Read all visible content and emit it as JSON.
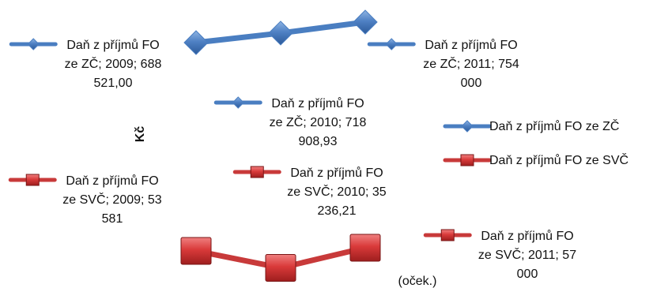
{
  "chart_data": {
    "type": "line",
    "title": "",
    "xlabel": "",
    "ylabel": "Kč",
    "x_annotation": "(oček.)",
    "categories": [
      "2009",
      "2010",
      "2011"
    ],
    "series": [
      {
        "name": "Daň z příjmů FO ze ZČ",
        "values": [
          688521.0,
          718908.93,
          754000
        ],
        "color": "#4a7ec1",
        "marker": "diamond",
        "data_labels": [
          [
            "Daň z příjmů FO",
            "ze ZČ; 2009; 688",
            "521,00"
          ],
          [
            "Daň z příjmů FO",
            "ze ZČ; 2010; 718",
            "908,93"
          ],
          [
            "Daň z příjmů FO",
            "ze ZČ; 2011; 754",
            "000"
          ]
        ]
      },
      {
        "name": "Daň z příjmů FO ze SVČ",
        "values": [
          53581,
          35236.21,
          57000
        ],
        "color": "#c83a3a",
        "marker": "square",
        "data_labels": [
          [
            "Daň z příjmů FO",
            "ze SVČ; 2009; 53",
            "581"
          ],
          [
            "Daň z příjmů FO",
            "ze SVČ; 2010; 35",
            "236,21"
          ],
          [
            "Daň z příjmů FO",
            "ze SVČ; 2011; 57",
            "000"
          ]
        ]
      }
    ],
    "legend": {
      "position": "right",
      "items": [
        "Daň z příjmů FO ze ZČ",
        "Daň z příjmů FO ze SVČ"
      ]
    },
    "grid": false
  }
}
